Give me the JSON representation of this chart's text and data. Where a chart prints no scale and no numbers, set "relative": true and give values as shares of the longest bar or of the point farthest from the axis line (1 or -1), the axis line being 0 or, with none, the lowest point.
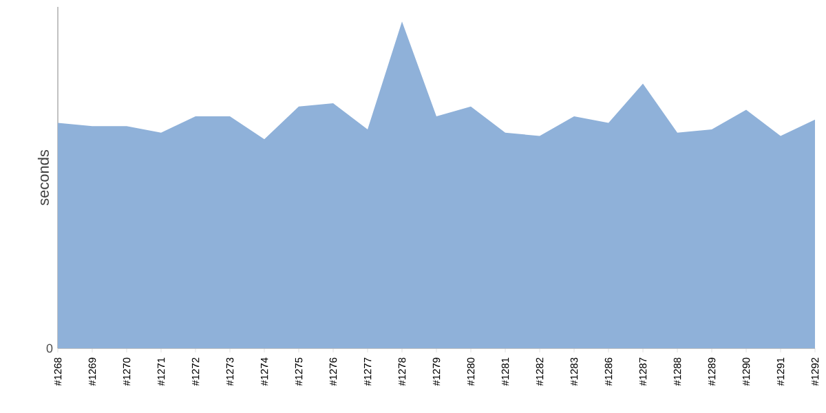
{
  "chart_data": {
    "type": "area",
    "ylabel": "seconds",
    "relative": true,
    "annotations": [
      "0"
    ],
    "categories": [
      "#1268",
      "#1269",
      "#1270",
      "#1271",
      "#1272",
      "#1273",
      "#1274",
      "#1275",
      "#1276",
      "#1277",
      "#1278",
      "#1279",
      "#1280",
      "#1281",
      "#1282",
      "#1283",
      "#1286",
      "#1287",
      "#1288",
      "#1289",
      "#1290",
      "#1291",
      "#1292"
    ],
    "series": [
      {
        "color": "#8fb1d9",
        "values": [
          0.69,
          0.68,
          0.68,
          0.66,
          0.71,
          0.71,
          0.64,
          0.74,
          0.75,
          0.67,
          1,
          0.71,
          0.74,
          0.66,
          0.65,
          0.71,
          0.69,
          0.81,
          0.66,
          0.67,
          0.73,
          0.65,
          0.7
        ]
      }
    ]
  }
}
